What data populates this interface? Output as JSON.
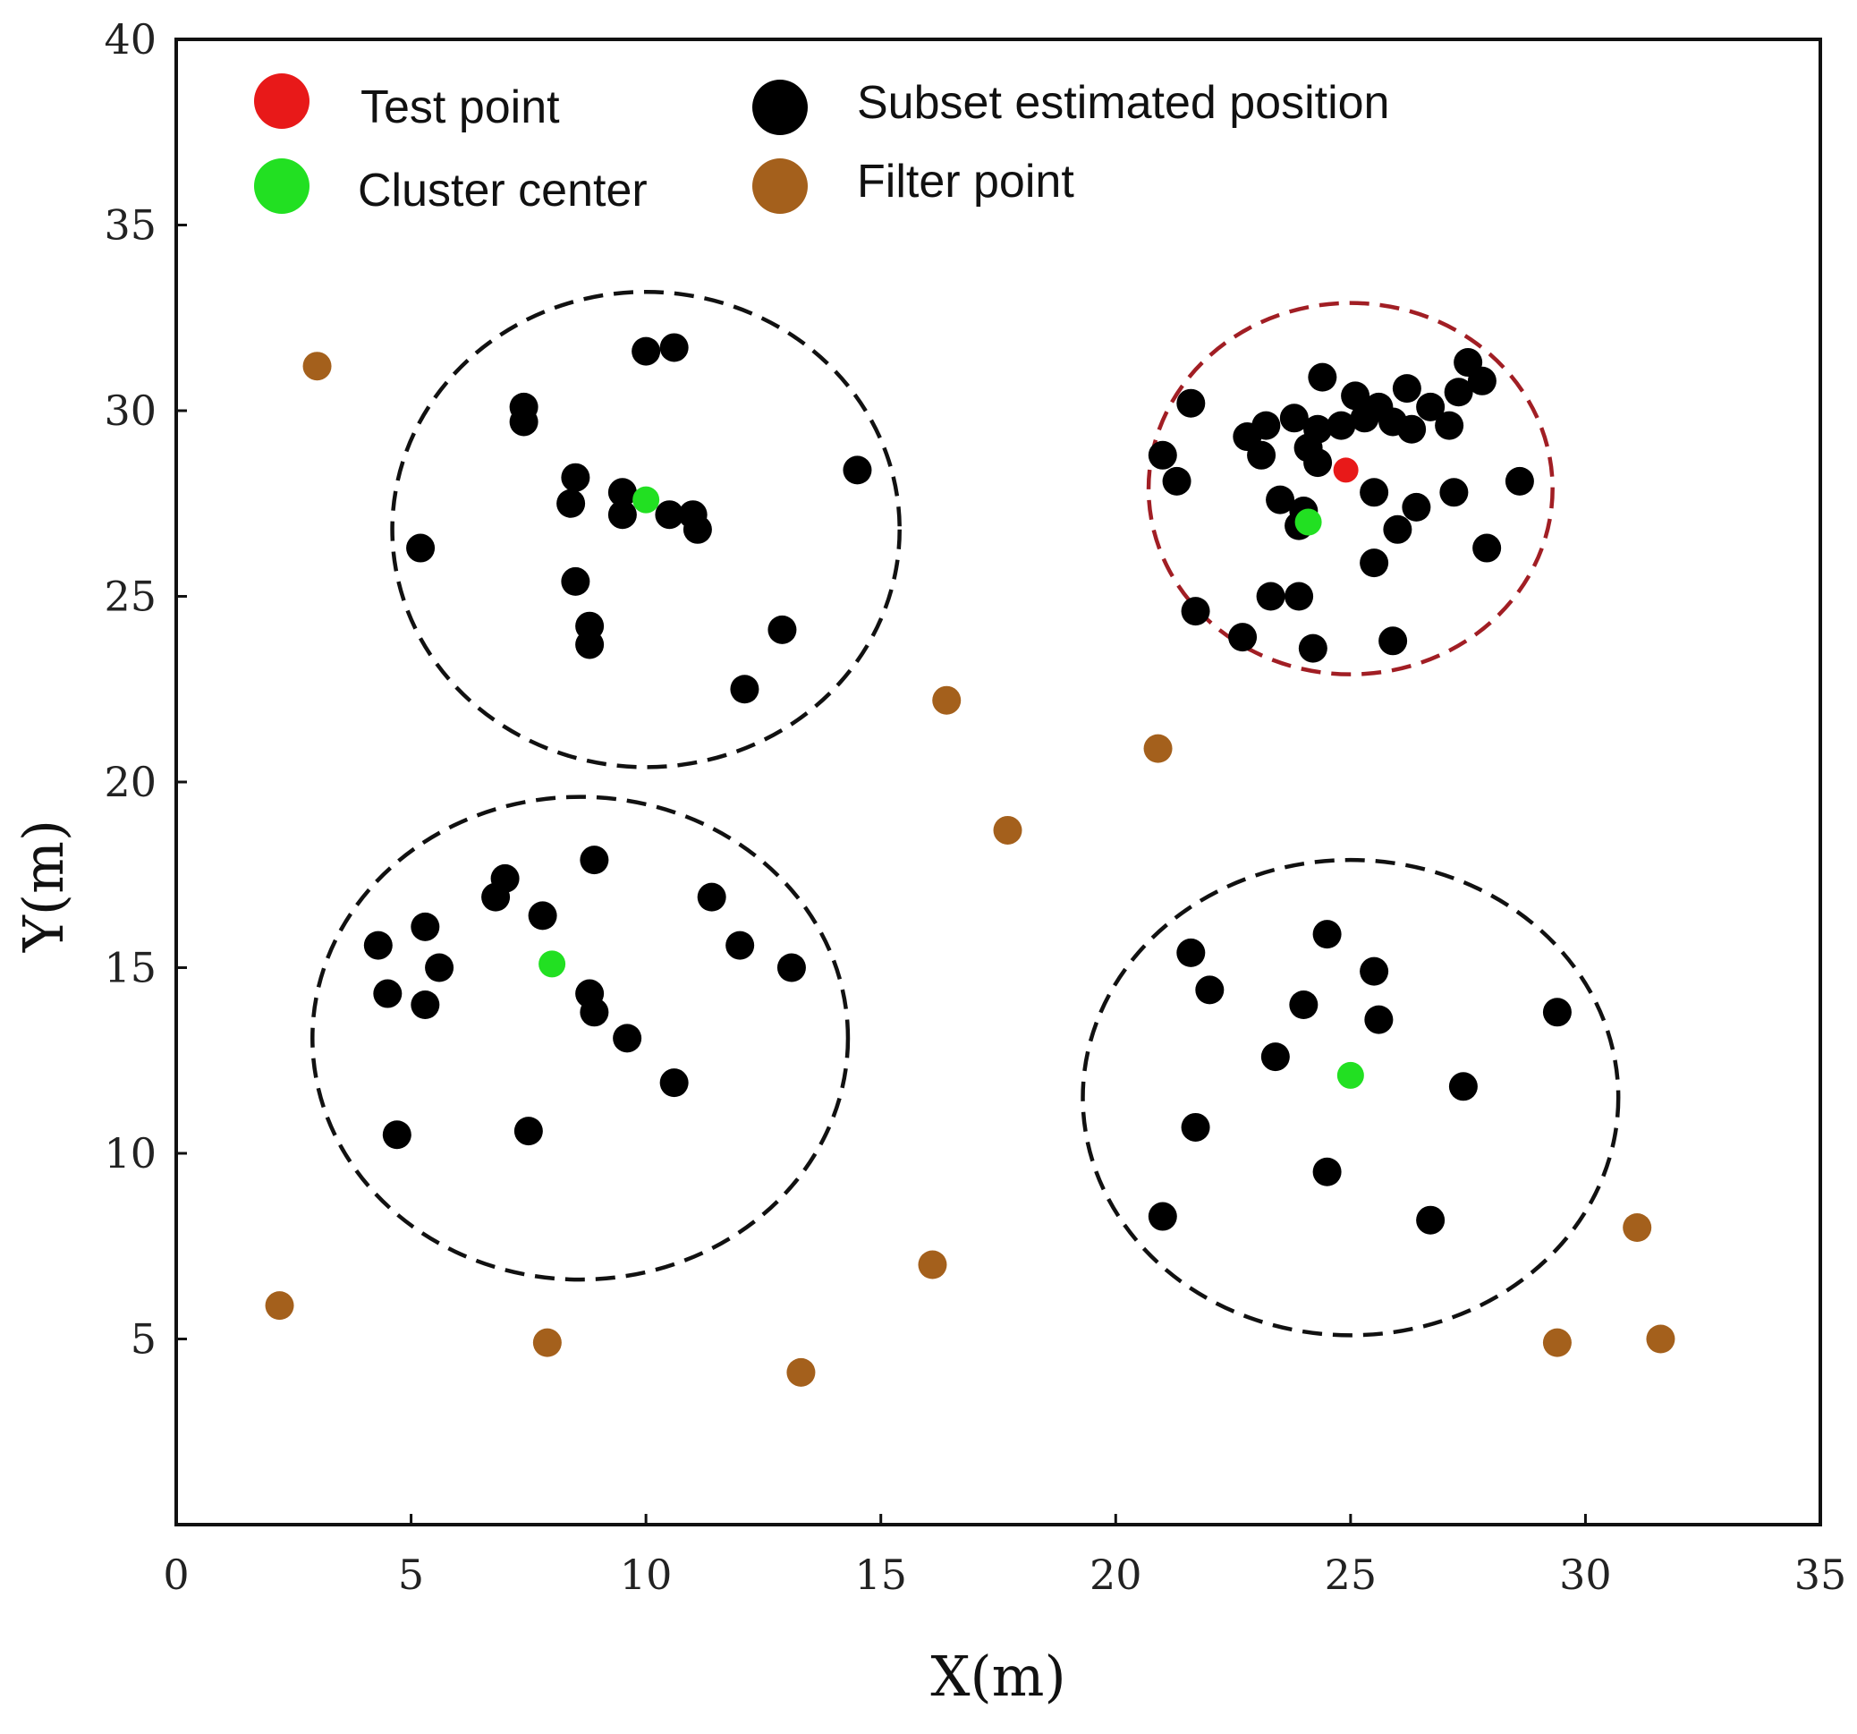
{
  "chart_data": {
    "type": "scatter",
    "title": "",
    "xlabel": "X(m)",
    "ylabel": "Y(m)",
    "xlim": [
      0,
      35
    ],
    "ylim": [
      0,
      40
    ],
    "xticks": [
      0,
      5,
      10,
      15,
      20,
      25,
      30,
      35
    ],
    "yticks": [
      5,
      10,
      15,
      20,
      25,
      30,
      35,
      40
    ],
    "grid": false,
    "legend": {
      "placement": "top-left",
      "entries": [
        {
          "label": "Test point",
          "color": "#e81919"
        },
        {
          "label": "Cluster center",
          "color": "#22e022"
        },
        {
          "label": "Subset estimated position",
          "color": "#000000"
        },
        {
          "label": "Filter point",
          "color": "#a4601c"
        }
      ]
    },
    "series": [
      {
        "name": "Subset estimated position",
        "color": "#000000",
        "points": [
          [
            5.2,
            26.3
          ],
          [
            7.4,
            30.1
          ],
          [
            7.4,
            29.7
          ],
          [
            8.5,
            28.2
          ],
          [
            8.4,
            27.5
          ],
          [
            9.5,
            27.8
          ],
          [
            9.5,
            27.2
          ],
          [
            10.5,
            27.2
          ],
          [
            11.0,
            27.2
          ],
          [
            11.1,
            26.8
          ],
          [
            10.0,
            31.6
          ],
          [
            10.6,
            31.7
          ],
          [
            8.5,
            25.4
          ],
          [
            8.8,
            24.2
          ],
          [
            8.8,
            23.7
          ],
          [
            12.9,
            24.1
          ],
          [
            12.1,
            22.5
          ],
          [
            14.5,
            28.4
          ],
          [
            4.3,
            15.6
          ],
          [
            5.3,
            16.1
          ],
          [
            5.6,
            15.0
          ],
          [
            4.5,
            14.3
          ],
          [
            5.3,
            14.0
          ],
          [
            6.8,
            16.9
          ],
          [
            7.0,
            17.4
          ],
          [
            7.8,
            16.4
          ],
          [
            8.9,
            17.9
          ],
          [
            8.8,
            14.3
          ],
          [
            8.9,
            13.8
          ],
          [
            9.6,
            13.1
          ],
          [
            10.6,
            11.9
          ],
          [
            11.4,
            16.9
          ],
          [
            12.0,
            15.6
          ],
          [
            13.1,
            15.0
          ],
          [
            4.7,
            10.5
          ],
          [
            7.5,
            10.6
          ],
          [
            21.6,
            15.4
          ],
          [
            22.0,
            14.4
          ],
          [
            24.5,
            15.9
          ],
          [
            25.5,
            14.9
          ],
          [
            25.6,
            13.6
          ],
          [
            24.0,
            14.0
          ],
          [
            23.4,
            12.6
          ],
          [
            29.4,
            13.8
          ],
          [
            27.4,
            11.8
          ],
          [
            21.7,
            10.7
          ],
          [
            24.5,
            9.5
          ],
          [
            21.0,
            8.3
          ],
          [
            26.7,
            8.2
          ],
          [
            21.6,
            30.2
          ],
          [
            21.0,
            28.8
          ],
          [
            21.3,
            28.1
          ],
          [
            24.4,
            30.9
          ],
          [
            22.8,
            29.3
          ],
          [
            23.2,
            29.6
          ],
          [
            23.1,
            28.8
          ],
          [
            23.8,
            29.8
          ],
          [
            24.3,
            29.5
          ],
          [
            24.8,
            29.6
          ],
          [
            25.1,
            30.4
          ],
          [
            25.3,
            29.8
          ],
          [
            25.6,
            30.1
          ],
          [
            25.9,
            29.7
          ],
          [
            26.2,
            30.6
          ],
          [
            26.3,
            29.5
          ],
          [
            26.7,
            30.1
          ],
          [
            27.1,
            29.6
          ],
          [
            27.3,
            30.5
          ],
          [
            27.5,
            31.3
          ],
          [
            27.8,
            30.8
          ],
          [
            24.1,
            29.0
          ],
          [
            24.3,
            28.6
          ],
          [
            23.5,
            27.6
          ],
          [
            24.0,
            27.3
          ],
          [
            23.9,
            26.9
          ],
          [
            25.5,
            27.8
          ],
          [
            26.4,
            27.4
          ],
          [
            27.2,
            27.8
          ],
          [
            28.6,
            28.1
          ],
          [
            26.0,
            26.8
          ],
          [
            25.5,
            25.9
          ],
          [
            27.9,
            26.3
          ],
          [
            21.7,
            24.6
          ],
          [
            23.3,
            25.0
          ],
          [
            23.9,
            25.0
          ],
          [
            22.7,
            23.9
          ],
          [
            24.2,
            23.6
          ],
          [
            25.9,
            23.8
          ]
        ]
      },
      {
        "name": "Filter point",
        "color": "#a4601c",
        "points": [
          [
            3.0,
            31.2
          ],
          [
            16.4,
            22.2
          ],
          [
            20.9,
            20.9
          ],
          [
            17.7,
            18.7
          ],
          [
            2.2,
            5.9
          ],
          [
            7.9,
            4.9
          ],
          [
            13.3,
            4.1
          ],
          [
            16.1,
            7.0
          ],
          [
            29.4,
            4.9
          ],
          [
            31.1,
            8.0
          ],
          [
            31.6,
            5.0
          ]
        ]
      },
      {
        "name": "Cluster center",
        "color": "#22e022",
        "points": [
          [
            10.0,
            27.6
          ],
          [
            8.0,
            15.1
          ],
          [
            24.1,
            27.0
          ],
          [
            25.0,
            12.1
          ]
        ]
      },
      {
        "name": "Test point",
        "color": "#e81919",
        "points": [
          [
            24.9,
            28.4
          ]
        ]
      }
    ],
    "cluster_circles": [
      {
        "center": [
          10.0,
          26.8
        ],
        "radius_x": 5.4,
        "radius_y": 6.4,
        "color": "#111111"
      },
      {
        "center": [
          25.0,
          27.9
        ],
        "radius_x": 4.3,
        "radius_y": 5.0,
        "color": "#a11e24"
      },
      {
        "center": [
          8.6,
          13.1
        ],
        "radius_x": 5.7,
        "radius_y": 6.5,
        "color": "#111111"
      },
      {
        "center": [
          25.0,
          11.5
        ],
        "radius_x": 5.7,
        "radius_y": 6.4,
        "color": "#111111"
      }
    ]
  }
}
